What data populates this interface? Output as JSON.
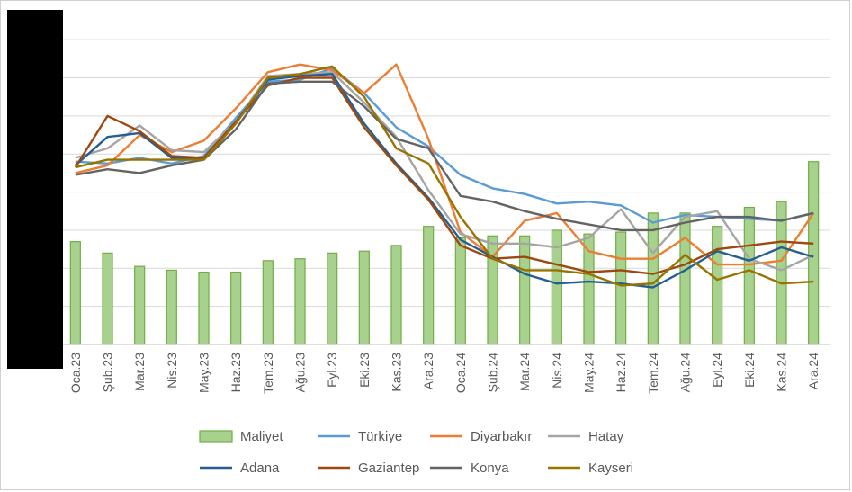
{
  "chart_data": {
    "type": "bar+line",
    "categories": [
      "Oca.23",
      "Şub.23",
      "Mar.23",
      "Nis.23",
      "May.23",
      "Haz.23",
      "Tem.23",
      "Ağu.23",
      "Eyl.23",
      "Eki.23",
      "Kas.23",
      "Ara.23",
      "Oca.24",
      "Şub.24",
      "Mar.24",
      "Nis.24",
      "May.24",
      "Haz.24",
      "Tem.24",
      "Ağu.24",
      "Eyl.24",
      "Eki.24",
      "Kas.24",
      "Ara.24"
    ],
    "ylim": [
      0,
      8.5
    ],
    "grid": true,
    "legend_position": "bottom",
    "bar_series": {
      "name": "Maliyet",
      "color": "#a9d18e",
      "border": "#70ad47",
      "values": [
        2.7,
        2.4,
        2.05,
        1.95,
        1.9,
        1.9,
        2.2,
        2.25,
        2.4,
        2.45,
        2.6,
        3.1,
        2.8,
        2.85,
        2.85,
        3.0,
        2.9,
        2.95,
        3.45,
        3.45,
        3.1,
        3.6,
        3.75,
        4.8
      ]
    },
    "series": [
      {
        "name": "Türkiye",
        "color": "#5b9bd5",
        "values": [
          4.8,
          4.75,
          4.9,
          4.75,
          4.95,
          5.95,
          6.9,
          6.95,
          7.25,
          6.6,
          5.7,
          5.2,
          4.45,
          4.1,
          3.95,
          3.7,
          3.75,
          3.65,
          3.2,
          3.4,
          3.35,
          3.3,
          3.25,
          3.45
        ]
      },
      {
        "name": "Diyarbakır",
        "color": "#ed7d31",
        "values": [
          4.5,
          4.7,
          5.5,
          5.05,
          5.35,
          6.2,
          7.15,
          7.35,
          7.2,
          6.6,
          7.35,
          5.4,
          2.95,
          2.3,
          3.25,
          3.45,
          2.45,
          2.25,
          2.25,
          2.8,
          2.1,
          2.1,
          2.2,
          3.45
        ]
      },
      {
        "name": "Hatay",
        "color": "#a5a5a5",
        "values": [
          4.9,
          5.15,
          5.75,
          5.1,
          5.05,
          5.85,
          7.05,
          7.1,
          7.15,
          6.35,
          5.45,
          4.05,
          2.9,
          2.65,
          2.65,
          2.55,
          2.8,
          3.55,
          2.4,
          3.35,
          3.5,
          2.25,
          1.95,
          2.35
        ]
      },
      {
        "name": "Adana",
        "color": "#255e91",
        "values": [
          4.7,
          5.45,
          5.55,
          4.9,
          4.9,
          5.85,
          6.95,
          7.05,
          7.1,
          5.8,
          4.75,
          3.85,
          2.75,
          2.3,
          1.85,
          1.6,
          1.65,
          1.6,
          1.5,
          1.95,
          2.45,
          2.2,
          2.55,
          2.3
        ]
      },
      {
        "name": "Gaziantep",
        "color": "#9e480e",
        "values": [
          4.65,
          6.0,
          5.6,
          4.95,
          4.9,
          5.85,
          6.8,
          7.0,
          7.0,
          5.7,
          4.7,
          3.8,
          2.6,
          2.25,
          2.3,
          2.1,
          1.9,
          1.95,
          1.85,
          2.1,
          2.5,
          2.6,
          2.7,
          2.65
        ]
      },
      {
        "name": "Konya",
        "color": "#636363",
        "values": [
          4.45,
          4.6,
          4.5,
          4.7,
          4.85,
          5.65,
          6.85,
          6.9,
          6.9,
          6.25,
          5.4,
          5.15,
          3.9,
          3.75,
          3.5,
          3.3,
          3.15,
          3.0,
          3.0,
          3.2,
          3.35,
          3.35,
          3.25,
          3.45
        ]
      },
      {
        "name": "Kayseri",
        "color": "#997300",
        "values": [
          4.65,
          4.85,
          4.85,
          4.85,
          4.85,
          5.8,
          7.0,
          7.1,
          7.3,
          6.5,
          5.15,
          4.75,
          3.35,
          2.25,
          1.95,
          1.95,
          1.85,
          1.55,
          1.6,
          2.35,
          1.7,
          1.95,
          1.6,
          1.65
        ]
      }
    ]
  }
}
